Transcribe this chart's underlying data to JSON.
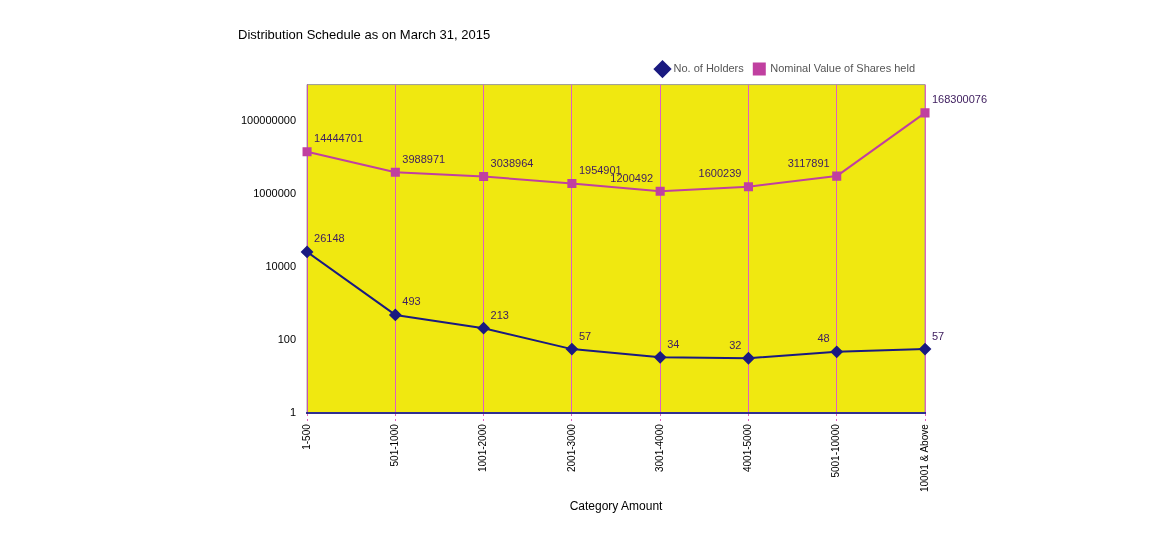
{
  "chart_data": {
    "type": "line",
    "title": "Distribution Schedule as on March 31, 2015",
    "xlabel": "Category Amount",
    "categories": [
      "1-500",
      "501-1000",
      "1001-2000",
      "2001-3000",
      "3001-4000",
      "4001-5000",
      "5001-10000",
      "10001 & Above"
    ],
    "series": [
      {
        "name": "No. of Holders",
        "color": "#1a1a80",
        "marker": "diamond",
        "values": [
          26148,
          493,
          213,
          57,
          34,
          32,
          48,
          57
        ]
      },
      {
        "name": "Nominal Value of Shares held",
        "color": "#c040a0",
        "marker": "square",
        "values": [
          14444701,
          3988971,
          3038964,
          1954901,
          1200492,
          1600239,
          3117891,
          168300076
        ]
      }
    ],
    "log": "y",
    "ylim": [
      1,
      1000000000
    ],
    "yticks": [
      1,
      100,
      10000,
      1000000,
      100000000
    ],
    "grid": "x",
    "legend": "top right",
    "data_labels": true
  }
}
